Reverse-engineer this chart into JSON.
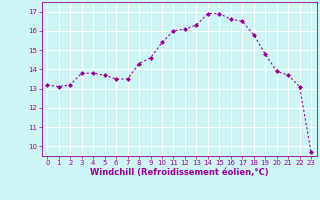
{
  "x": [
    0,
    1,
    2,
    3,
    4,
    5,
    6,
    7,
    8,
    9,
    10,
    11,
    12,
    13,
    14,
    15,
    16,
    17,
    18,
    19,
    20,
    21,
    22,
    23
  ],
  "y": [
    13.2,
    13.1,
    13.2,
    13.8,
    13.8,
    13.7,
    13.5,
    13.5,
    14.3,
    14.6,
    15.4,
    16.0,
    16.1,
    16.3,
    16.9,
    16.9,
    16.6,
    16.5,
    15.8,
    14.8,
    13.9,
    13.7,
    13.1,
    9.7
  ],
  "line_color": "#990099",
  "marker": "D",
  "markersize": 2.0,
  "linewidth": 0.8,
  "xlabel": "Windchill (Refroidissement éolien,°C)",
  "ylim": [
    9.5,
    17.5
  ],
  "yticks": [
    10,
    11,
    12,
    13,
    14,
    15,
    16,
    17
  ],
  "xticks": [
    0,
    1,
    2,
    3,
    4,
    5,
    6,
    7,
    8,
    9,
    10,
    11,
    12,
    13,
    14,
    15,
    16,
    17,
    18,
    19,
    20,
    21,
    22,
    23
  ],
  "bg_color": "#cef5f5",
  "grid_color": "#ffffff",
  "tick_color": "#990099",
  "tick_fontsize": 5.0,
  "xlabel_fontsize": 6.0
}
